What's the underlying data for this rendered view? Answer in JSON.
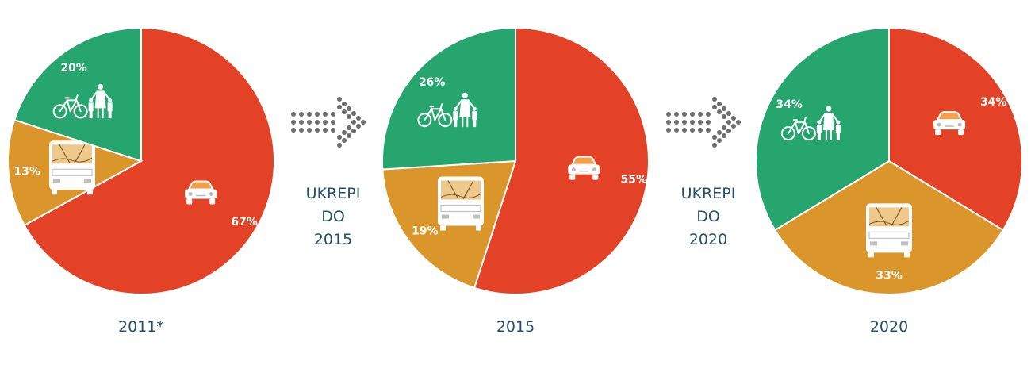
{
  "chart_data": [
    {
      "type": "pie",
      "label": "2011*",
      "slices": [
        {
          "name": "car",
          "icon": "car-icon",
          "value": 67,
          "label": "67%",
          "color": "#e34226"
        },
        {
          "name": "public-transport",
          "icon": "bus-icon",
          "value": 13,
          "label": "13%",
          "color": "#da962a"
        },
        {
          "name": "cycling-walking",
          "icon": "bicycle-pedestrians-icon",
          "value": 20,
          "label": "20%",
          "color": "#26a56e"
        }
      ]
    },
    {
      "type": "pie",
      "label": "2015",
      "slices": [
        {
          "name": "car",
          "icon": "car-icon",
          "value": 55,
          "label": "55%",
          "color": "#e34226"
        },
        {
          "name": "public-transport",
          "icon": "bus-icon",
          "value": 19,
          "label": "19%",
          "color": "#da962a"
        },
        {
          "name": "cycling-walking",
          "icon": "bicycle-pedestrians-icon",
          "value": 26,
          "label": "26%",
          "color": "#26a56e"
        }
      ]
    },
    {
      "type": "pie",
      "label": "2020",
      "slices": [
        {
          "name": "car",
          "icon": "car-icon",
          "value": 34,
          "label": "34%",
          "color": "#e34226"
        },
        {
          "name": "public-transport",
          "icon": "bus-icon",
          "value": 33,
          "label": "33%",
          "color": "#da962a"
        },
        {
          "name": "cycling-walking",
          "icon": "bicycle-pedestrians-icon",
          "value": 34,
          "label": "34%",
          "color": "#26a56e"
        }
      ]
    }
  ],
  "transitions": [
    {
      "lines": [
        "UKREPI",
        "DO",
        "2015"
      ],
      "icon": "dotted-arrow-icon",
      "color": "#6e6e6e"
    },
    {
      "lines": [
        "UKREPI",
        "DO",
        "2020"
      ],
      "icon": "dotted-arrow-icon",
      "color": "#6e6e6e"
    }
  ],
  "colors": {
    "text": "#24506b",
    "car": "#e34226",
    "bus": "#da962a",
    "active": "#26a56e"
  }
}
